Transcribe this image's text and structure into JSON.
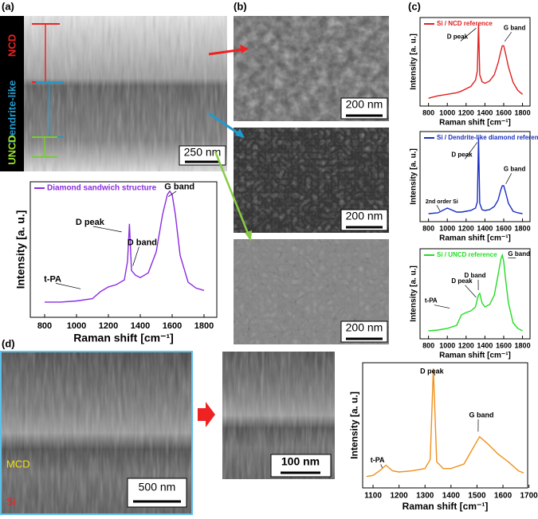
{
  "panels": [
    "(a)",
    "(b)",
    "(c)",
    "(d)"
  ],
  "sem_labels": {
    "ncd": "NCD",
    "dendrite": "Dendrite-like",
    "uncd": "UNCD",
    "mcd": "MCD",
    "si": "Si"
  },
  "scale_bars": [
    "250 nm",
    "200 nm",
    "200 nm",
    "200 nm",
    "500 nm",
    "100 nm"
  ],
  "chart_data": [
    {
      "type": "line",
      "xlabel": "Raman shift [cm⁻¹]",
      "ylabel": "Intensity [a. u.]",
      "xlim": [
        710,
        1880
      ],
      "ylim": [
        -8,
        108
      ],
      "xticks": [
        800,
        1000,
        1200,
        1400,
        1600,
        1800
      ],
      "x": [
        800,
        900,
        1000,
        1100,
        1150,
        1200,
        1250,
        1300,
        1320,
        1332,
        1345,
        1370,
        1400,
        1450,
        1500,
        1540,
        1570,
        1585,
        1600,
        1620,
        1650,
        1700,
        1750,
        1800
      ],
      "series": [
        {
          "name": "Diamond sandwich structure",
          "color": "#8a2be2",
          "values": [
            5,
            5,
            6,
            8,
            14,
            18,
            20,
            24,
            40,
            72,
            32,
            28,
            26,
            30,
            48,
            80,
            97,
            100,
            97,
            80,
            45,
            22,
            17,
            15
          ]
        }
      ],
      "annotations": [
        "G band",
        "D peak",
        "D band",
        "t-PA"
      ]
    },
    {
      "type": "line",
      "xlabel": "Raman shift [cm⁻¹]",
      "ylabel": "Intensity [a. u.]",
      "xlim": [
        710,
        1880
      ],
      "ylim": [
        -5,
        108
      ],
      "xticks": [
        800,
        1000,
        1200,
        1400,
        1600,
        1800
      ],
      "x": [
        800,
        900,
        1000,
        1100,
        1150,
        1200,
        1250,
        1300,
        1320,
        1332,
        1345,
        1370,
        1400,
        1450,
        1500,
        1540,
        1570,
        1585,
        1600,
        1620,
        1650,
        1700,
        1750,
        1800
      ],
      "series": [
        {
          "name": "Si / NCD reference",
          "color": "#e02020",
          "values": [
            5,
            8,
            10,
            12,
            14,
            17,
            20,
            28,
            40,
            100,
            35,
            26,
            24,
            27,
            35,
            50,
            65,
            72,
            72,
            62,
            45,
            25,
            15,
            10
          ]
        }
      ],
      "annotations": [
        "D peak",
        "G band"
      ]
    },
    {
      "type": "line",
      "xlabel": "Raman shift [cm⁻¹]",
      "ylabel": "Intensity [a. u.]",
      "xlim": [
        710,
        1880
      ],
      "ylim": [
        -5,
        108
      ],
      "xticks": [
        800,
        1000,
        1200,
        1400,
        1600,
        1800
      ],
      "x": [
        800,
        900,
        1000,
        1100,
        1150,
        1200,
        1250,
        1300,
        1320,
        1332,
        1345,
        1370,
        1400,
        1450,
        1500,
        1540,
        1570,
        1585,
        1600,
        1620,
        1650,
        1700,
        1750,
        1800
      ],
      "series": [
        {
          "name": "Si / Dendrite-like diamond reference",
          "color": "#1a2fc0",
          "values": [
            5,
            6,
            12,
            7,
            7,
            8,
            9,
            12,
            20,
            100,
            18,
            10,
            9,
            10,
            14,
            22,
            35,
            40,
            40,
            32,
            18,
            8,
            6,
            5
          ]
        }
      ],
      "annotations": [
        "D peak",
        "G band",
        "2nd order Si"
      ]
    },
    {
      "type": "line",
      "xlabel": "Raman shift [cm⁻¹]",
      "ylabel": "Intensity [a. u.]",
      "xlim": [
        710,
        1880
      ],
      "ylim": [
        -5,
        108
      ],
      "xticks": [
        800,
        1000,
        1200,
        1400,
        1600,
        1800
      ],
      "x": [
        800,
        900,
        1000,
        1100,
        1150,
        1200,
        1250,
        1300,
        1320,
        1332,
        1345,
        1370,
        1400,
        1450,
        1500,
        1540,
        1570,
        1585,
        1600,
        1620,
        1650,
        1700,
        1750,
        1800
      ],
      "series": [
        {
          "name": "Si / UNCD reference",
          "color": "#22dd22",
          "values": [
            5,
            6,
            8,
            12,
            25,
            28,
            30,
            35,
            45,
            50,
            52,
            40,
            35,
            38,
            50,
            75,
            95,
            100,
            92,
            70,
            40,
            15,
            8,
            5
          ]
        }
      ],
      "annotations": [
        "G band",
        "D peak",
        "D band",
        "t-PA"
      ]
    },
    {
      "type": "line",
      "xlabel": "Raman shift [cm⁻¹]",
      "ylabel": "Intensity [a. u.]",
      "xlim": [
        1060,
        1695
      ],
      "ylim": [
        -5,
        105
      ],
      "xticks": [
        1100,
        1200,
        1300,
        1400,
        1500,
        1600,
        1700
      ],
      "x": [
        1075,
        1100,
        1125,
        1150,
        1175,
        1200,
        1250,
        1300,
        1320,
        1332,
        1345,
        1370,
        1400,
        1450,
        1480,
        1510,
        1540,
        1580,
        1620,
        1660,
        1680
      ],
      "series": [
        {
          "name": "",
          "color": "#f0901a",
          "values": [
            5,
            6,
            10,
            15,
            10,
            9,
            10,
            12,
            20,
            100,
            18,
            12,
            12,
            16,
            28,
            40,
            34,
            25,
            18,
            10,
            8
          ]
        }
      ],
      "annotations": [
        "D peak",
        "G band",
        "t-PA"
      ]
    }
  ]
}
